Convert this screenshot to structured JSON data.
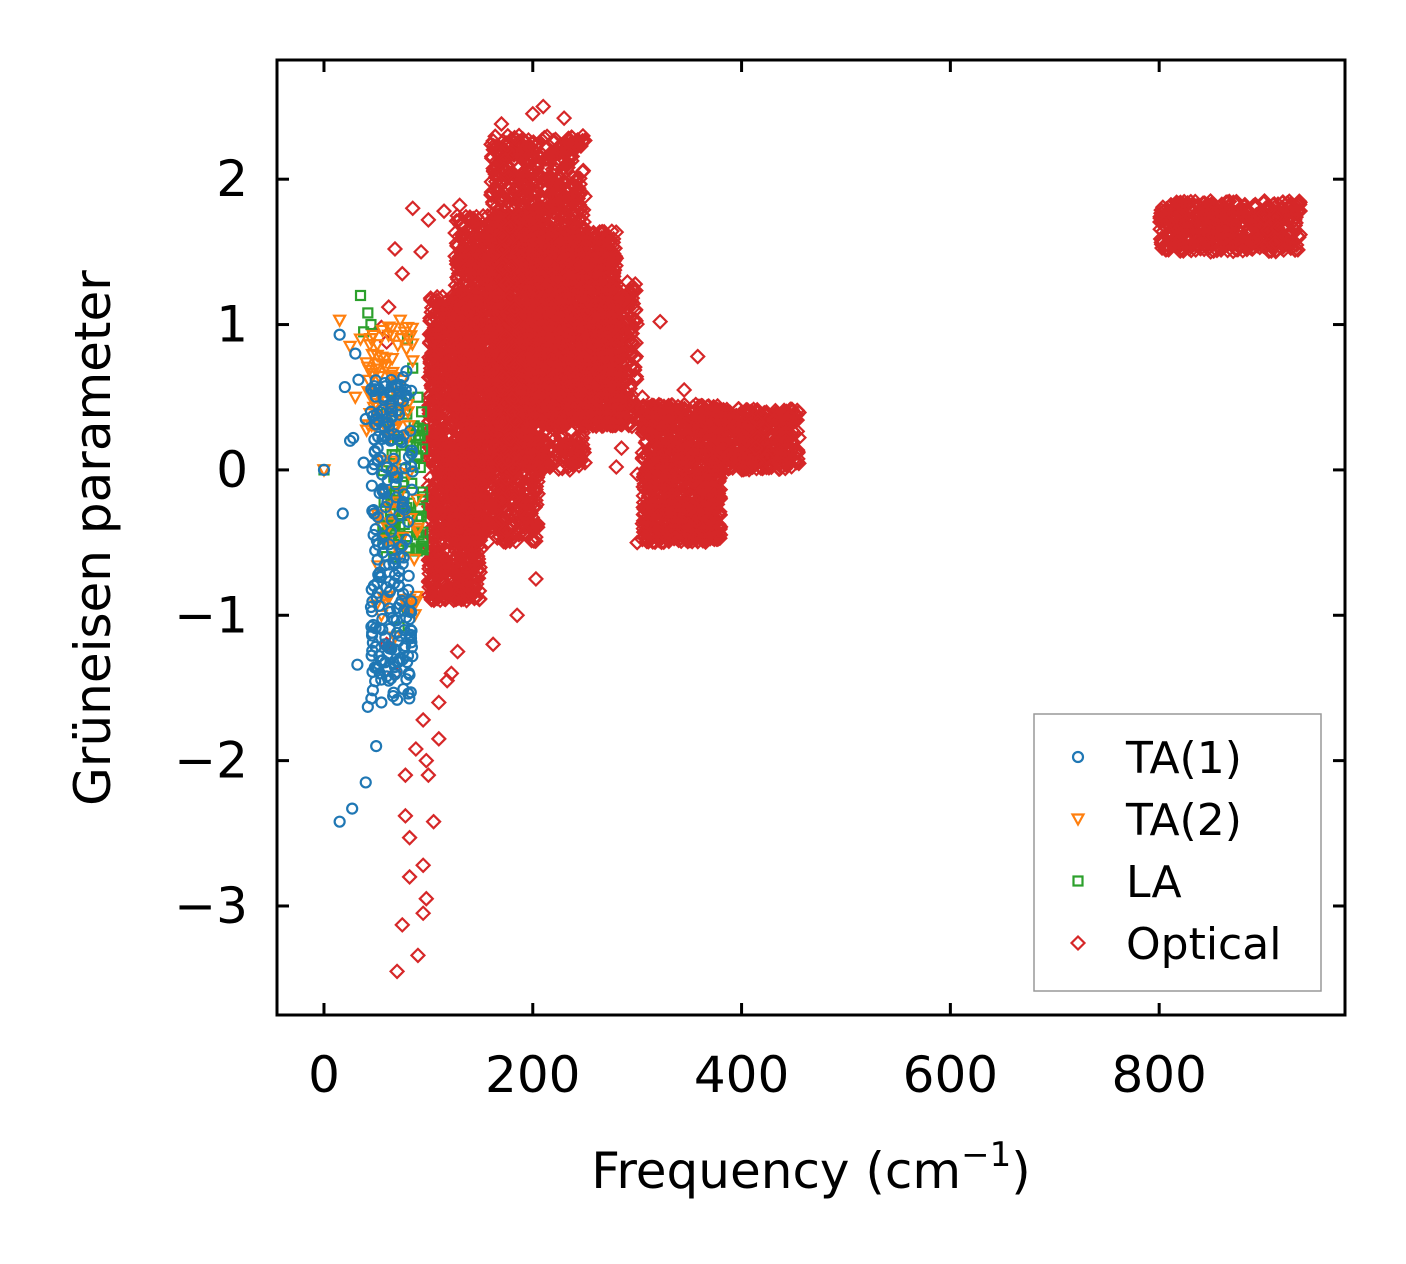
{
  "chart_data": {
    "type": "scatter",
    "title": "",
    "xlabel_main": "Frequency (cm",
    "xlabel_sup": "−1",
    "xlabel_close": ")",
    "ylabel": "Grüneisen parameter",
    "xlim": [
      -45,
      978
    ],
    "ylim": [
      -3.75,
      2.82
    ],
    "xticks": [
      0,
      200,
      400,
      600,
      800
    ],
    "xtick_labels": [
      "0",
      "200",
      "400",
      "600",
      "800"
    ],
    "yticks": [
      -3,
      -2,
      -1,
      0,
      1,
      2
    ],
    "ytick_labels": [
      "−3",
      "−2",
      "−1",
      "0",
      "1",
      "2"
    ],
    "legend_position": "lower-right",
    "series": [
      {
        "name": "TA(1)",
        "color": "#1f77b4",
        "marker": "circle",
        "regions": [
          {
            "x": [
              45,
              85
            ],
            "y": [
              -1.6,
              0.7
            ],
            "n": 240
          }
        ],
        "points": [
          [
            0,
            0
          ],
          [
            15,
            -2.42
          ],
          [
            27,
            -2.33
          ],
          [
            40,
            -2.15
          ],
          [
            50,
            -1.9
          ],
          [
            42,
            -1.63
          ],
          [
            32,
            -1.34
          ],
          [
            55,
            -1.6
          ],
          [
            18,
            -0.3
          ],
          [
            15,
            0.93
          ],
          [
            20,
            0.57
          ],
          [
            28,
            0.22
          ],
          [
            33,
            0.62
          ],
          [
            40,
            0.35
          ],
          [
            38,
            0.05
          ],
          [
            48,
            -0.3
          ],
          [
            52,
            -0.72
          ],
          [
            58,
            -1.2
          ],
          [
            62,
            -1.45
          ],
          [
            70,
            -0.95
          ],
          [
            72,
            -0.8
          ],
          [
            30,
            0.8
          ],
          [
            25,
            0.2
          ],
          [
            45,
            0.4
          ],
          [
            57,
            0.3
          ]
        ]
      },
      {
        "name": "TA(2)",
        "color": "#ff7f0e",
        "marker": "triangle-down",
        "regions": [
          {
            "x": [
              40,
              85
            ],
            "y": [
              0.2,
              1.0
            ],
            "n": 70
          },
          {
            "x": [
              50,
              90
            ],
            "y": [
              -1.0,
              0.1
            ],
            "n": 40
          }
        ],
        "points": [
          [
            0,
            0
          ],
          [
            15,
            1.03
          ],
          [
            25,
            0.85
          ],
          [
            30,
            0.5
          ],
          [
            35,
            0.9
          ],
          [
            50,
            -0.93
          ],
          [
            55,
            -1.0
          ],
          [
            68,
            -1.15
          ],
          [
            73,
            1.03
          ],
          [
            80,
            0.98
          ],
          [
            90,
            -0.4
          ],
          [
            85,
            0.75
          ]
        ]
      },
      {
        "name": "LA",
        "color": "#2ca02c",
        "marker": "square",
        "regions": [
          {
            "x": [
              55,
              95
            ],
            "y": [
              -0.6,
              0.5
            ],
            "n": 90
          }
        ],
        "points": [
          [
            0,
            0
          ],
          [
            35,
            1.2
          ],
          [
            38,
            0.95
          ],
          [
            42,
            1.08
          ],
          [
            45,
            1.0
          ],
          [
            80,
            0.9
          ],
          [
            85,
            0.7
          ],
          [
            90,
            0.5
          ],
          [
            88,
            -0.55
          ],
          [
            95,
            -0.55
          ],
          [
            72,
            -1.08
          ],
          [
            80,
            -0.97
          ]
        ]
      },
      {
        "name": "Optical",
        "color": "#d62728",
        "marker": "diamond",
        "regions": [
          {
            "x": [
              100,
              150
            ],
            "y": [
              -0.9,
              1.2
            ],
            "n": 1200
          },
          {
            "x": [
              125,
              205
            ],
            "y": [
              -0.5,
              1.75
            ],
            "n": 1500
          },
          {
            "x": [
              160,
              250
            ],
            "y": [
              0.0,
              2.3
            ],
            "n": 1600
          },
          {
            "x": [
              200,
              280
            ],
            "y": [
              0.3,
              1.65
            ],
            "n": 1200
          },
          {
            "x": [
              255,
              300
            ],
            "y": [
              0.3,
              1.3
            ],
            "n": 400
          },
          {
            "x": [
              305,
              380
            ],
            "y": [
              -0.5,
              0.45
            ],
            "n": 900
          },
          {
            "x": [
              370,
              455
            ],
            "y": [
              0.0,
              0.42
            ],
            "n": 500
          },
          {
            "x": [
              800,
              935
            ],
            "y": [
              1.5,
              1.85
            ],
            "n": 500
          }
        ],
        "points": [
          [
            70,
            -3.45
          ],
          [
            75,
            -3.13
          ],
          [
            90,
            -3.34
          ],
          [
            95,
            -3.05
          ],
          [
            82,
            -2.8
          ],
          [
            98,
            -2.95
          ],
          [
            95,
            -2.72
          ],
          [
            105,
            -2.42
          ],
          [
            78,
            -2.38
          ],
          [
            82,
            -2.53
          ],
          [
            78,
            -2.1
          ],
          [
            100,
            -2.1
          ],
          [
            88,
            -1.92
          ],
          [
            98,
            -2.0
          ],
          [
            95,
            -1.72
          ],
          [
            110,
            -1.85
          ],
          [
            118,
            -1.45
          ],
          [
            128,
            -1.25
          ],
          [
            162,
            -1.2
          ],
          [
            185,
            -1.0
          ],
          [
            203,
            -0.75
          ],
          [
            85,
            1.8
          ],
          [
            100,
            1.72
          ],
          [
            115,
            1.78
          ],
          [
            130,
            1.82
          ],
          [
            68,
            1.52
          ],
          [
            93,
            1.5
          ],
          [
            170,
            2.38
          ],
          [
            200,
            2.45
          ],
          [
            210,
            2.5
          ],
          [
            230,
            2.42
          ],
          [
            322,
            1.02
          ],
          [
            345,
            0.55
          ],
          [
            358,
            0.78
          ],
          [
            320,
            0.38
          ],
          [
            300,
            -0.5
          ],
          [
            315,
            -0.45
          ],
          [
            305,
            0.5
          ],
          [
            250,
            0.05
          ],
          [
            240,
            0.05
          ],
          [
            55,
            0.98
          ],
          [
            60,
            0.88
          ],
          [
            75,
            1.35
          ],
          [
            62,
            1.12
          ],
          [
            68,
            -1.4
          ],
          [
            60,
            -1.2
          ],
          [
            110,
            -1.6
          ],
          [
            122,
            -1.4
          ],
          [
            295,
            0.3
          ],
          [
            285,
            0.15
          ],
          [
            300,
            -0.03
          ],
          [
            280,
            0.02
          ]
        ]
      }
    ]
  }
}
